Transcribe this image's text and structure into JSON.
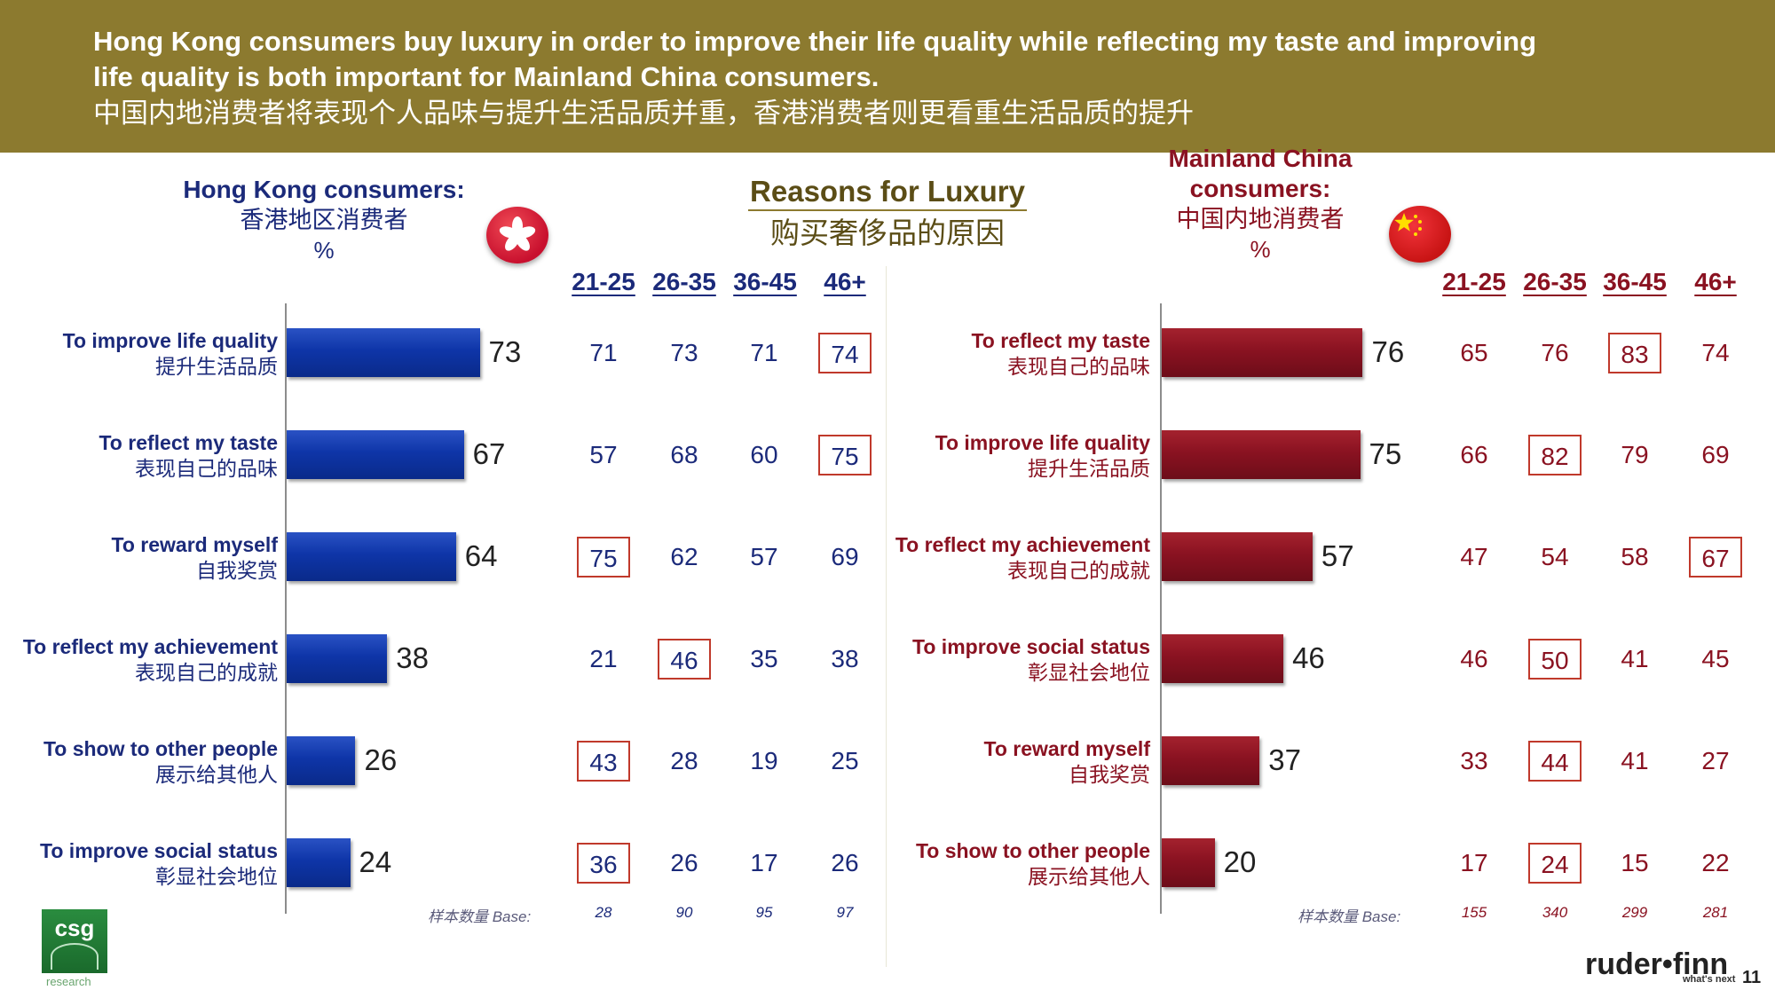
{
  "header": {
    "line1": "Hong Kong consumers buy luxury in order to improve their life quality while reflecting my taste and improving",
    "line2": "life quality is both important for Mainland China consumers.",
    "line3": "中国内地消费者将表现个人品味与提升生活品质并重，香港消费者则更看重生活品质的提升"
  },
  "center_title": {
    "en": "Reasons for Luxury",
    "zh": "购买奢侈品的原因"
  },
  "age_groups": [
    "21-25",
    "26-35",
    "36-45",
    "46+"
  ],
  "base_label": "样本数量 Base:",
  "colors": {
    "header_bg": "#8c7a2f",
    "hk_blue": "#0e35a8",
    "cn_red": "#8a1221",
    "box_red": "#c0392b"
  },
  "chart_data": [
    {
      "type": "bar",
      "orientation": "horizontal",
      "title": "Hong Kong consumers:",
      "title_zh": "香港地区消费者",
      "unit": "%",
      "xlim": [
        0,
        100
      ],
      "categories_en": [
        "To improve life quality",
        "To reflect my taste",
        "To reward myself",
        "To reflect my achievement",
        "To show to other people",
        "To improve social status"
      ],
      "categories_zh": [
        "提升生活品质",
        "表现自己的品味",
        "自我奖赏",
        "表现自己的成就",
        "展示给其他人",
        "彰显社会地位"
      ],
      "values": [
        73,
        67,
        64,
        38,
        26,
        24
      ],
      "age_breakdown": [
        [
          71,
          73,
          71,
          74
        ],
        [
          57,
          68,
          60,
          75
        ],
        [
          75,
          62,
          57,
          69
        ],
        [
          21,
          46,
          35,
          38
        ],
        [
          43,
          28,
          19,
          25
        ],
        [
          36,
          26,
          17,
          26
        ]
      ],
      "highlighted": [
        [
          3
        ],
        [
          3
        ],
        [
          0
        ],
        [
          1
        ],
        [
          0
        ],
        [
          0
        ]
      ],
      "base": [
        28,
        90,
        95,
        97
      ]
    },
    {
      "type": "bar",
      "orientation": "horizontal",
      "title": "Mainland China consumers:",
      "title_zh": "中国内地消费者",
      "unit": "%",
      "xlim": [
        0,
        100
      ],
      "categories_en": [
        "To reflect my taste",
        "To improve life quality",
        "To reflect my achievement",
        "To improve social status",
        "To reward myself",
        "To show to other people"
      ],
      "categories_zh": [
        "表现自己的品味",
        "提升生活品质",
        "表现自己的成就",
        "彰显社会地位",
        "自我奖赏",
        "展示给其他人"
      ],
      "values": [
        76,
        75,
        57,
        46,
        37,
        20
      ],
      "age_breakdown": [
        [
          65,
          76,
          83,
          74
        ],
        [
          66,
          82,
          79,
          69
        ],
        [
          47,
          54,
          58,
          67
        ],
        [
          46,
          50,
          41,
          45
        ],
        [
          33,
          44,
          41,
          27
        ],
        [
          17,
          24,
          15,
          22
        ]
      ],
      "highlighted": [
        [
          2
        ],
        [
          1
        ],
        [
          3
        ],
        [
          1
        ],
        [
          1
        ],
        [
          1
        ]
      ],
      "base": [
        155,
        340,
        299,
        281
      ]
    }
  ],
  "footer": {
    "csg_logo": "csg",
    "csg_sub": "research",
    "brand": "ruder•finn",
    "brand_tag": "what's next",
    "page_number": "11"
  }
}
